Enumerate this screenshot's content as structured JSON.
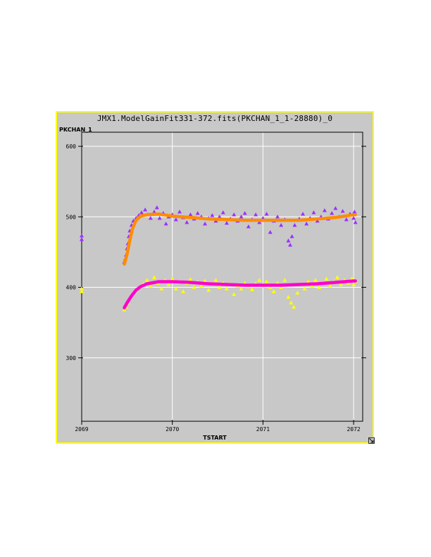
{
  "window": {
    "title": "JMX1.ModelGainFit331-372.fits(PKCHAN_1_1-28880)_0"
  },
  "chart_data": {
    "type": "scatter",
    "title": "JMX1.ModelGainFit331-372.fits(PKCHAN_1_1-28880)_0",
    "xlabel": "TSTART",
    "ylabel": "PKCHAN_1",
    "xlim": [
      2069,
      2072.1
    ],
    "ylim": [
      210,
      620
    ],
    "xticks": [
      2069,
      2070,
      2071,
      2072
    ],
    "yticks": [
      300,
      400,
      500,
      600
    ],
    "grid": true,
    "series": [
      {
        "kind": "points",
        "marker": "triangle",
        "color": "#9b30ff",
        "points": [
          [
            2069.0,
            473
          ],
          [
            2069.0,
            468
          ],
          [
            2069.47,
            436
          ],
          [
            2069.48,
            440
          ],
          [
            2069.49,
            446
          ],
          [
            2069.5,
            455
          ],
          [
            2069.51,
            462
          ],
          [
            2069.52,
            472
          ],
          [
            2069.53,
            480
          ],
          [
            2069.55,
            488
          ],
          [
            2069.57,
            494
          ],
          [
            2069.6,
            498
          ],
          [
            2069.63,
            502
          ],
          [
            2069.66,
            506
          ],
          [
            2069.7,
            510
          ],
          [
            2069.73,
            503
          ],
          [
            2069.76,
            498
          ],
          [
            2069.8,
            507
          ],
          [
            2069.83,
            513
          ],
          [
            2069.86,
            498
          ],
          [
            2069.9,
            505
          ],
          [
            2069.93,
            490
          ],
          [
            2069.96,
            500
          ],
          [
            2070.0,
            503
          ],
          [
            2070.04,
            496
          ],
          [
            2070.08,
            507
          ],
          [
            2070.12,
            499
          ],
          [
            2070.16,
            492
          ],
          [
            2070.2,
            503
          ],
          [
            2070.24,
            497
          ],
          [
            2070.28,
            505
          ],
          [
            2070.32,
            500
          ],
          [
            2070.36,
            490
          ],
          [
            2070.4,
            498
          ],
          [
            2070.44,
            502
          ],
          [
            2070.48,
            494
          ],
          [
            2070.52,
            500
          ],
          [
            2070.56,
            506
          ],
          [
            2070.6,
            491
          ],
          [
            2070.64,
            497
          ],
          [
            2070.68,
            503
          ],
          [
            2070.72,
            494
          ],
          [
            2070.76,
            500
          ],
          [
            2070.8,
            505
          ],
          [
            2070.84,
            486
          ],
          [
            2070.88,
            496
          ],
          [
            2070.92,
            503
          ],
          [
            2070.96,
            492
          ],
          [
            2071.0,
            498
          ],
          [
            2071.04,
            504
          ],
          [
            2071.08,
            478
          ],
          [
            2071.12,
            494
          ],
          [
            2071.16,
            500
          ],
          [
            2071.2,
            488
          ],
          [
            2071.24,
            496
          ],
          [
            2071.28,
            466
          ],
          [
            2071.3,
            460
          ],
          [
            2071.32,
            472
          ],
          [
            2071.35,
            488
          ],
          [
            2071.4,
            497
          ],
          [
            2071.44,
            504
          ],
          [
            2071.48,
            490
          ],
          [
            2071.52,
            498
          ],
          [
            2071.56,
            506
          ],
          [
            2071.6,
            494
          ],
          [
            2071.64,
            500
          ],
          [
            2071.68,
            509
          ],
          [
            2071.72,
            497
          ],
          [
            2071.76,
            505
          ],
          [
            2071.8,
            512
          ],
          [
            2071.84,
            500
          ],
          [
            2071.88,
            508
          ],
          [
            2071.92,
            496
          ],
          [
            2071.96,
            504
          ],
          [
            2072.0,
            498
          ],
          [
            2072.01,
            507
          ],
          [
            2072.02,
            492
          ]
        ]
      },
      {
        "kind": "points",
        "marker": "triangle",
        "color": "#ffff00",
        "points": [
          [
            2069.0,
            398
          ],
          [
            2069.0,
            394
          ],
          [
            2069.47,
            368
          ],
          [
            2069.49,
            372
          ],
          [
            2069.51,
            378
          ],
          [
            2069.53,
            384
          ],
          [
            2069.56,
            390
          ],
          [
            2069.6,
            396
          ],
          [
            2069.64,
            400
          ],
          [
            2069.68,
            405
          ],
          [
            2069.72,
            410
          ],
          [
            2069.76,
            402
          ],
          [
            2069.8,
            414
          ],
          [
            2069.84,
            406
          ],
          [
            2069.88,
            398
          ],
          [
            2069.92,
            410
          ],
          [
            2069.96,
            404
          ],
          [
            2070.0,
            412
          ],
          [
            2070.04,
            398
          ],
          [
            2070.08,
            408
          ],
          [
            2070.12,
            394
          ],
          [
            2070.16,
            406
          ],
          [
            2070.2,
            411
          ],
          [
            2070.24,
            400
          ],
          [
            2070.28,
            407
          ],
          [
            2070.32,
            402
          ],
          [
            2070.36,
            409
          ],
          [
            2070.4,
            396
          ],
          [
            2070.44,
            405
          ],
          [
            2070.48,
            410
          ],
          [
            2070.52,
            400
          ],
          [
            2070.56,
            406
          ],
          [
            2070.6,
            398
          ],
          [
            2070.64,
            404
          ],
          [
            2070.68,
            390
          ],
          [
            2070.72,
            402
          ],
          [
            2070.76,
            398
          ],
          [
            2070.8,
            406
          ],
          [
            2070.84,
            401
          ],
          [
            2070.88,
            397
          ],
          [
            2070.92,
            405
          ],
          [
            2070.96,
            410
          ],
          [
            2071.0,
            402
          ],
          [
            2071.04,
            408
          ],
          [
            2071.08,
            400
          ],
          [
            2071.12,
            394
          ],
          [
            2071.16,
            406
          ],
          [
            2071.2,
            400
          ],
          [
            2071.24,
            410
          ],
          [
            2071.28,
            386
          ],
          [
            2071.31,
            378
          ],
          [
            2071.34,
            372
          ],
          [
            2071.38,
            392
          ],
          [
            2071.42,
            404
          ],
          [
            2071.46,
            398
          ],
          [
            2071.5,
            408
          ],
          [
            2071.54,
            402
          ],
          [
            2071.58,
            410
          ],
          [
            2071.62,
            400
          ],
          [
            2071.66,
            406
          ],
          [
            2071.7,
            412
          ],
          [
            2071.74,
            402
          ],
          [
            2071.78,
            408
          ],
          [
            2071.82,
            414
          ],
          [
            2071.86,
            404
          ],
          [
            2071.9,
            410
          ],
          [
            2071.94,
            406
          ],
          [
            2071.98,
            412
          ],
          [
            2072.0,
            404
          ],
          [
            2072.02,
            409
          ]
        ]
      },
      {
        "kind": "curve",
        "color": "#ff8c00",
        "points": [
          [
            2069.47,
            433
          ],
          [
            2069.5,
            447
          ],
          [
            2069.53,
            466
          ],
          [
            2069.56,
            483
          ],
          [
            2069.6,
            495
          ],
          [
            2069.65,
            501
          ],
          [
            2069.72,
            503
          ],
          [
            2069.85,
            504
          ],
          [
            2070.0,
            501
          ],
          [
            2070.2,
            499
          ],
          [
            2070.4,
            497
          ],
          [
            2070.6,
            496
          ],
          [
            2070.8,
            495
          ],
          [
            2071.0,
            495
          ],
          [
            2071.2,
            495
          ],
          [
            2071.4,
            495
          ],
          [
            2071.6,
            497
          ],
          [
            2071.8,
            499
          ],
          [
            2072.0,
            503
          ],
          [
            2072.02,
            503
          ]
        ]
      },
      {
        "kind": "curve",
        "color": "#ff00cc",
        "points": [
          [
            2069.47,
            371
          ],
          [
            2069.5,
            378
          ],
          [
            2069.55,
            388
          ],
          [
            2069.6,
            396
          ],
          [
            2069.65,
            401
          ],
          [
            2069.72,
            405
          ],
          [
            2069.85,
            408
          ],
          [
            2070.0,
            408
          ],
          [
            2070.2,
            407
          ],
          [
            2070.4,
            405
          ],
          [
            2070.6,
            404
          ],
          [
            2070.8,
            403
          ],
          [
            2071.0,
            403
          ],
          [
            2071.2,
            403
          ],
          [
            2071.4,
            404
          ],
          [
            2071.6,
            405
          ],
          [
            2071.8,
            407
          ],
          [
            2072.0,
            409
          ],
          [
            2072.02,
            409
          ]
        ]
      }
    ]
  }
}
